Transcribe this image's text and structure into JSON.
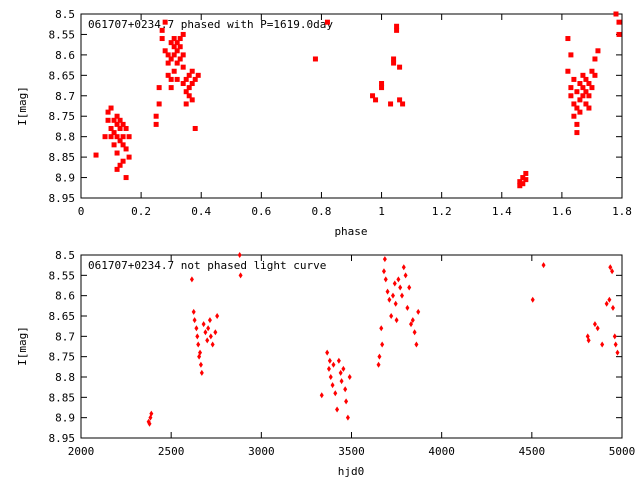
{
  "chart_data": [
    {
      "type": "scatter",
      "title": "061707+0234.7 phased with P=1619.0day",
      "xlabel": "phase",
      "ylabel": "I[mag]",
      "xlim": [
        0,
        1.8
      ],
      "ylim": [
        8.95,
        8.5
      ],
      "y_inverted": true,
      "xticks": [
        "0",
        "0.2",
        "0.4",
        "0.6",
        "0.8",
        "1",
        "1.2",
        "1.4",
        "1.6",
        "1.8"
      ],
      "xtick_values": [
        0,
        0.2,
        0.4,
        0.6,
        0.8,
        1.0,
        1.2,
        1.4,
        1.6,
        1.8
      ],
      "yticks": [
        "8.5",
        "8.55",
        "8.6",
        "8.65",
        "8.7",
        "8.75",
        "8.8",
        "8.85",
        "8.9",
        "8.95"
      ],
      "ytick_values": [
        8.5,
        8.55,
        8.6,
        8.65,
        8.7,
        8.75,
        8.8,
        8.85,
        8.9,
        8.95
      ],
      "marker_color": "#ff0000",
      "marker": "square",
      "points": [
        [
          0.05,
          8.845
        ],
        [
          0.08,
          8.8
        ],
        [
          0.09,
          8.74
        ],
        [
          0.09,
          8.76
        ],
        [
          0.1,
          8.73
        ],
        [
          0.1,
          8.78
        ],
        [
          0.1,
          8.8
        ],
        [
          0.11,
          8.76
        ],
        [
          0.11,
          8.79
        ],
        [
          0.11,
          8.82
        ],
        [
          0.12,
          8.75
        ],
        [
          0.12,
          8.77
        ],
        [
          0.12,
          8.8
        ],
        [
          0.12,
          8.84
        ],
        [
          0.12,
          8.88
        ],
        [
          0.13,
          8.76
        ],
        [
          0.13,
          8.78
        ],
        [
          0.13,
          8.81
        ],
        [
          0.13,
          8.87
        ],
        [
          0.14,
          8.77
        ],
        [
          0.14,
          8.8
        ],
        [
          0.14,
          8.82
        ],
        [
          0.14,
          8.86
        ],
        [
          0.15,
          8.78
        ],
        [
          0.15,
          8.83
        ],
        [
          0.15,
          8.9
        ],
        [
          0.16,
          8.8
        ],
        [
          0.16,
          8.85
        ],
        [
          0.25,
          8.75
        ],
        [
          0.25,
          8.77
        ],
        [
          0.26,
          8.68
        ],
        [
          0.26,
          8.72
        ],
        [
          0.27,
          8.54
        ],
        [
          0.27,
          8.56
        ],
        [
          0.28,
          8.52
        ],
        [
          0.28,
          8.59
        ],
        [
          0.29,
          8.6
        ],
        [
          0.29,
          8.62
        ],
        [
          0.29,
          8.65
        ],
        [
          0.3,
          8.57
        ],
        [
          0.3,
          8.61
        ],
        [
          0.3,
          8.66
        ],
        [
          0.3,
          8.68
        ],
        [
          0.31,
          8.56
        ],
        [
          0.31,
          8.58
        ],
        [
          0.31,
          8.6
        ],
        [
          0.31,
          8.64
        ],
        [
          0.32,
          8.57
        ],
        [
          0.32,
          8.59
        ],
        [
          0.32,
          8.62
        ],
        [
          0.32,
          8.66
        ],
        [
          0.33,
          8.56
        ],
        [
          0.33,
          8.58
        ],
        [
          0.33,
          8.61
        ],
        [
          0.34,
          8.55
        ],
        [
          0.34,
          8.6
        ],
        [
          0.34,
          8.63
        ],
        [
          0.34,
          8.67
        ],
        [
          0.35,
          8.66
        ],
        [
          0.35,
          8.69
        ],
        [
          0.35,
          8.72
        ],
        [
          0.36,
          8.65
        ],
        [
          0.36,
          8.68
        ],
        [
          0.36,
          8.7
        ],
        [
          0.37,
          8.64
        ],
        [
          0.37,
          8.67
        ],
        [
          0.37,
          8.71
        ],
        [
          0.38,
          8.66
        ],
        [
          0.38,
          8.78
        ],
        [
          0.39,
          8.65
        ],
        [
          0.78,
          8.61
        ],
        [
          0.82,
          8.52
        ],
        [
          0.97,
          8.7
        ],
        [
          0.98,
          8.71
        ],
        [
          1.0,
          8.67
        ],
        [
          1.0,
          8.68
        ],
        [
          1.03,
          8.72
        ],
        [
          1.04,
          8.61
        ],
        [
          1.04,
          8.62
        ],
        [
          1.05,
          8.53
        ],
        [
          1.05,
          8.54
        ],
        [
          1.06,
          8.63
        ],
        [
          1.06,
          8.71
        ],
        [
          1.07,
          8.72
        ],
        [
          1.46,
          8.91
        ],
        [
          1.46,
          8.92
        ],
        [
          1.47,
          8.9
        ],
        [
          1.47,
          8.915
        ],
        [
          1.48,
          8.89
        ],
        [
          1.48,
          8.905
        ],
        [
          1.62,
          8.56
        ],
        [
          1.62,
          8.64
        ],
        [
          1.63,
          8.6
        ],
        [
          1.63,
          8.68
        ],
        [
          1.63,
          8.7
        ],
        [
          1.64,
          8.66
        ],
        [
          1.64,
          8.72
        ],
        [
          1.64,
          8.75
        ],
        [
          1.65,
          8.69
        ],
        [
          1.65,
          8.73
        ],
        [
          1.65,
          8.77
        ],
        [
          1.65,
          8.79
        ],
        [
          1.66,
          8.67
        ],
        [
          1.66,
          8.71
        ],
        [
          1.66,
          8.74
        ],
        [
          1.67,
          8.65
        ],
        [
          1.67,
          8.68
        ],
        [
          1.67,
          8.7
        ],
        [
          1.68,
          8.66
        ],
        [
          1.68,
          8.69
        ],
        [
          1.68,
          8.72
        ],
        [
          1.69,
          8.67
        ],
        [
          1.69,
          8.7
        ],
        [
          1.69,
          8.73
        ],
        [
          1.7,
          8.64
        ],
        [
          1.7,
          8.68
        ],
        [
          1.71,
          8.61
        ],
        [
          1.71,
          8.65
        ],
        [
          1.72,
          8.59
        ],
        [
          1.78,
          8.5
        ],
        [
          1.79,
          8.52
        ],
        [
          1.79,
          8.55
        ]
      ]
    },
    {
      "type": "scatter",
      "title": "061707+0234.7 not phased light curve",
      "xlabel": "hjd0",
      "ylabel": "I[mag]",
      "xlim": [
        2000,
        5000
      ],
      "ylim": [
        8.95,
        8.5
      ],
      "y_inverted": true,
      "xticks": [
        "2000",
        "2500",
        "3000",
        "3500",
        "4000",
        "4500",
        "5000"
      ],
      "xtick_values": [
        2000,
        2500,
        3000,
        3500,
        4000,
        4500,
        5000
      ],
      "yticks": [
        "8.5",
        "8.55",
        "8.6",
        "8.65",
        "8.7",
        "8.75",
        "8.8",
        "8.85",
        "8.9",
        "8.95"
      ],
      "ytick_values": [
        8.5,
        8.55,
        8.6,
        8.65,
        8.7,
        8.75,
        8.8,
        8.85,
        8.9,
        8.95
      ],
      "marker_color": "#ff0000",
      "marker": "diamond",
      "points": [
        [
          2375,
          8.91
        ],
        [
          2380,
          8.915
        ],
        [
          2385,
          8.9
        ],
        [
          2390,
          8.89
        ],
        [
          2615,
          8.56
        ],
        [
          2625,
          8.64
        ],
        [
          2630,
          8.66
        ],
        [
          2640,
          8.68
        ],
        [
          2645,
          8.7
        ],
        [
          2650,
          8.72
        ],
        [
          2655,
          8.75
        ],
        [
          2660,
          8.74
        ],
        [
          2665,
          8.77
        ],
        [
          2670,
          8.79
        ],
        [
          2680,
          8.67
        ],
        [
          2690,
          8.69
        ],
        [
          2700,
          8.71
        ],
        [
          2705,
          8.68
        ],
        [
          2715,
          8.66
        ],
        [
          2720,
          8.7
        ],
        [
          2730,
          8.72
        ],
        [
          2745,
          8.69
        ],
        [
          2755,
          8.65
        ],
        [
          2880,
          8.5
        ],
        [
          2885,
          8.55
        ],
        [
          3335,
          8.845
        ],
        [
          3365,
          8.74
        ],
        [
          3375,
          8.78
        ],
        [
          3380,
          8.76
        ],
        [
          3385,
          8.8
        ],
        [
          3395,
          8.82
        ],
        [
          3400,
          8.77
        ],
        [
          3410,
          8.84
        ],
        [
          3420,
          8.88
        ],
        [
          3430,
          8.76
        ],
        [
          3440,
          8.79
        ],
        [
          3445,
          8.81
        ],
        [
          3455,
          8.78
        ],
        [
          3465,
          8.83
        ],
        [
          3470,
          8.86
        ],
        [
          3480,
          8.9
        ],
        [
          3490,
          8.8
        ],
        [
          3650,
          8.77
        ],
        [
          3655,
          8.75
        ],
        [
          3665,
          8.68
        ],
        [
          3670,
          8.72
        ],
        [
          3680,
          8.54
        ],
        [
          3685,
          8.51
        ],
        [
          3690,
          8.56
        ],
        [
          3700,
          8.59
        ],
        [
          3710,
          8.61
        ],
        [
          3720,
          8.65
        ],
        [
          3730,
          8.6
        ],
        [
          3740,
          8.57
        ],
        [
          3745,
          8.62
        ],
        [
          3750,
          8.66
        ],
        [
          3760,
          8.56
        ],
        [
          3770,
          8.58
        ],
        [
          3780,
          8.6
        ],
        [
          3790,
          8.53
        ],
        [
          3800,
          8.55
        ],
        [
          3810,
          8.63
        ],
        [
          3820,
          8.58
        ],
        [
          3830,
          8.67
        ],
        [
          3840,
          8.66
        ],
        [
          3850,
          8.69
        ],
        [
          3860,
          8.72
        ],
        [
          3870,
          8.64
        ],
        [
          4505,
          8.61
        ],
        [
          4565,
          8.525
        ],
        [
          4810,
          8.7
        ],
        [
          4815,
          8.71
        ],
        [
          4850,
          8.67
        ],
        [
          4865,
          8.68
        ],
        [
          4890,
          8.72
        ],
        [
          4915,
          8.62
        ],
        [
          4930,
          8.61
        ],
        [
          4935,
          8.53
        ],
        [
          4945,
          8.54
        ],
        [
          4950,
          8.63
        ],
        [
          4960,
          8.7
        ],
        [
          4965,
          8.72
        ],
        [
          4975,
          8.74
        ]
      ]
    }
  ]
}
